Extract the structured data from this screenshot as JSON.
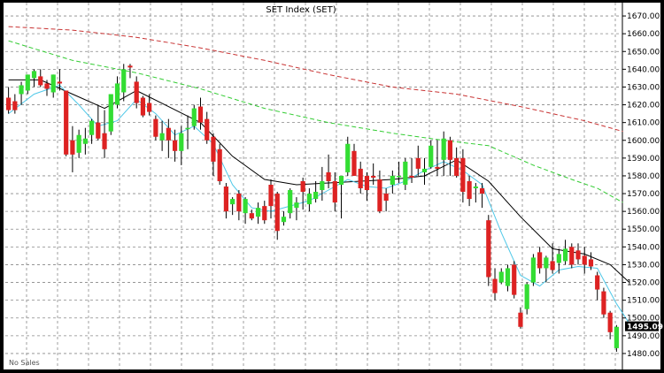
{
  "chart_data": {
    "type": "candlestick",
    "title": "SET Index (SET)",
    "footer_note": "No Sales",
    "ylim": [
      1474,
      1676
    ],
    "y_ticks": [
      1670,
      1660,
      1650,
      1640,
      1630,
      1620,
      1610,
      1600,
      1590,
      1580,
      1570,
      1560,
      1550,
      1540,
      1530,
      1520,
      1510,
      1500,
      1490,
      1480
    ],
    "y_tick_labels": [
      "1670.00",
      "1660.00",
      "1650.00",
      "1640.00",
      "1630.00",
      "1620.00",
      "1610.00",
      "1600.00",
      "1590.00",
      "1580.00",
      "1570.00",
      "1560.00",
      "1550.00",
      "1540.00",
      "1530.00",
      "1520.00",
      "1510.00",
      "1500.00",
      "1490.00",
      "1480.00"
    ],
    "last_value": 1495.09,
    "last_value_label": "1495.09",
    "grid": true,
    "up_color": "#33dd33",
    "down_color": "#dd2222",
    "candles": [
      [
        1624,
        1630,
        1615,
        1617
      ],
      [
        1622,
        1626,
        1615,
        1617
      ],
      [
        1626,
        1633,
        1620,
        1631
      ],
      [
        1628,
        1637,
        1626,
        1637
      ],
      [
        1635,
        1640,
        1630,
        1639
      ],
      [
        1636,
        1640,
        1630,
        1631
      ],
      [
        1632,
        1634,
        1625,
        1629
      ],
      [
        1627,
        1637,
        1624,
        1637
      ],
      [
        1633,
        1640,
        1628,
        1632
      ],
      [
        1628,
        1628,
        1591,
        1592
      ],
      [
        1600,
        1608,
        1582,
        1592
      ],
      [
        1593,
        1606,
        1590,
        1603
      ],
      [
        1598,
        1607,
        1592,
        1601
      ],
      [
        1603,
        1612,
        1598,
        1611
      ],
      [
        1610,
        1620,
        1600,
        1601
      ],
      [
        1604,
        1617,
        1590,
        1595
      ],
      [
        1605,
        1626,
        1603,
        1626
      ],
      [
        1620,
        1636,
        1618,
        1632
      ],
      [
        1627,
        1643,
        1622,
        1640
      ],
      [
        1642,
        1643,
        1635,
        1641
      ],
      [
        1633,
        1636,
        1618,
        1621
      ],
      [
        1624,
        1625,
        1613,
        1614
      ],
      [
        1621,
        1626,
        1614,
        1616
      ],
      [
        1612,
        1614,
        1600,
        1602
      ],
      [
        1600,
        1611,
        1594,
        1604
      ],
      [
        1607,
        1612,
        1590,
        1600
      ],
      [
        1600,
        1606,
        1588,
        1594
      ],
      [
        1594,
        1608,
        1586,
        1604
      ],
      [
        1607,
        1614,
        1595,
        1607
      ],
      [
        1608,
        1620,
        1606,
        1618
      ],
      [
        1619,
        1624,
        1606,
        1610
      ],
      [
        1612,
        1616,
        1598,
        1600
      ],
      [
        1602,
        1604,
        1580,
        1588
      ],
      [
        1595,
        1598,
        1575,
        1577
      ],
      [
        1574,
        1576,
        1556,
        1560
      ],
      [
        1564,
        1568,
        1558,
        1567
      ],
      [
        1570,
        1572,
        1555,
        1560
      ],
      [
        1559,
        1568,
        1553,
        1567
      ],
      [
        1559,
        1561,
        1555,
        1556
      ],
      [
        1557,
        1565,
        1553,
        1562
      ],
      [
        1563,
        1566,
        1553,
        1555
      ],
      [
        1575,
        1578,
        1556,
        1563
      ],
      [
        1570,
        1571,
        1544,
        1549
      ],
      [
        1554,
        1560,
        1552,
        1557
      ],
      [
        1559,
        1573,
        1556,
        1572
      ],
      [
        1562,
        1568,
        1555,
        1565
      ],
      [
        1577,
        1579,
        1561,
        1571
      ],
      [
        1564,
        1573,
        1560,
        1570
      ],
      [
        1567,
        1577,
        1565,
        1571
      ],
      [
        1572,
        1585,
        1566,
        1577
      ],
      [
        1582,
        1592,
        1573,
        1577
      ],
      [
        1577,
        1582,
        1560,
        1565
      ],
      [
        1575,
        1580,
        1556,
        1580
      ],
      [
        1582,
        1602,
        1580,
        1598
      ],
      [
        1594,
        1598,
        1580,
        1580
      ],
      [
        1584,
        1588,
        1570,
        1573
      ],
      [
        1580,
        1582,
        1566,
        1572
      ],
      [
        1580,
        1587,
        1575,
        1579
      ],
      [
        1578,
        1583,
        1559,
        1560
      ],
      [
        1570,
        1573,
        1560,
        1566
      ],
      [
        1575,
        1583,
        1570,
        1580
      ],
      [
        1580,
        1588,
        1576,
        1580
      ],
      [
        1575,
        1590,
        1572,
        1588
      ],
      [
        1580,
        1590,
        1576,
        1579
      ],
      [
        1590,
        1597,
        1580,
        1584
      ],
      [
        1582,
        1590,
        1575,
        1584
      ],
      [
        1585,
        1600,
        1584,
        1597
      ],
      [
        1585,
        1600,
        1580,
        1584
      ],
      [
        1589,
        1605,
        1580,
        1601
      ],
      [
        1600,
        1602,
        1580,
        1589
      ],
      [
        1590,
        1596,
        1579,
        1580
      ],
      [
        1590,
        1595,
        1565,
        1571
      ],
      [
        1577,
        1580,
        1563,
        1567
      ],
      [
        1573,
        1576,
        1565,
        1574
      ],
      [
        1573,
        1576,
        1562,
        1570
      ],
      [
        1555,
        1558,
        1518,
        1523
      ],
      [
        1522,
        1528,
        1510,
        1514
      ],
      [
        1520,
        1528,
        1519,
        1526
      ],
      [
        1518,
        1530,
        1515,
        1528
      ],
      [
        1530,
        1532,
        1511,
        1513
      ],
      [
        1503,
        1506,
        1494,
        1495
      ],
      [
        1505,
        1520,
        1502,
        1519
      ],
      [
        1520,
        1536,
        1518,
        1534
      ],
      [
        1537,
        1540,
        1525,
        1528
      ],
      [
        1528,
        1535,
        1520,
        1534
      ],
      [
        1532,
        1542,
        1525,
        1527
      ],
      [
        1531,
        1539,
        1525,
        1536
      ],
      [
        1532,
        1544,
        1530,
        1539
      ],
      [
        1540,
        1542,
        1528,
        1530
      ],
      [
        1538,
        1542,
        1530,
        1533
      ],
      [
        1535,
        1540,
        1525,
        1530
      ],
      [
        1533,
        1537,
        1527,
        1529
      ],
      [
        1524,
        1526,
        1510,
        1516
      ],
      [
        1515,
        1517,
        1500,
        1502
      ],
      [
        1503,
        1504,
        1488,
        1492
      ],
      [
        1483,
        1496,
        1481,
        1495
      ]
    ],
    "ma_short": [
      [
        0,
        1615
      ],
      [
        4,
        1626
      ],
      [
        8,
        1631
      ],
      [
        11,
        1620
      ],
      [
        14,
        1608
      ],
      [
        17,
        1611
      ],
      [
        20,
        1623
      ],
      [
        23,
        1615
      ],
      [
        26,
        1603
      ],
      [
        29,
        1608
      ],
      [
        32,
        1598
      ],
      [
        35,
        1575
      ],
      [
        38,
        1562
      ],
      [
        41,
        1560
      ],
      [
        44,
        1563
      ],
      [
        47,
        1566
      ],
      [
        50,
        1572
      ],
      [
        53,
        1578
      ],
      [
        56,
        1574
      ],
      [
        59,
        1573
      ],
      [
        62,
        1577
      ],
      [
        65,
        1583
      ],
      [
        68,
        1588
      ],
      [
        71,
        1583
      ],
      [
        74,
        1575
      ],
      [
        77,
        1548
      ],
      [
        80,
        1524
      ],
      [
        83,
        1518
      ],
      [
        86,
        1527
      ],
      [
        89,
        1529
      ],
      [
        92,
        1528
      ],
      [
        95,
        1508
      ],
      [
        97,
        1497
      ]
    ],
    "ma_mid": [
      [
        0,
        1634
      ],
      [
        5,
        1634
      ],
      [
        10,
        1626
      ],
      [
        15,
        1618
      ],
      [
        20,
        1628
      ],
      [
        25,
        1619
      ],
      [
        30,
        1610
      ],
      [
        35,
        1591
      ],
      [
        40,
        1578
      ],
      [
        45,
        1575
      ],
      [
        50,
        1576
      ],
      [
        55,
        1577
      ],
      [
        60,
        1578
      ],
      [
        65,
        1580
      ],
      [
        70,
        1589
      ],
      [
        75,
        1577
      ],
      [
        80,
        1557
      ],
      [
        85,
        1539
      ],
      [
        90,
        1536
      ],
      [
        94,
        1530
      ],
      [
        97,
        1520
      ]
    ],
    "ma_long": [
      [
        0,
        1656
      ],
      [
        10,
        1645
      ],
      [
        20,
        1638
      ],
      [
        30,
        1629
      ],
      [
        40,
        1618
      ],
      [
        50,
        1610
      ],
      [
        60,
        1604
      ],
      [
        68,
        1600
      ],
      [
        75,
        1597
      ],
      [
        82,
        1586
      ],
      [
        88,
        1578
      ],
      [
        92,
        1573
      ],
      [
        96,
        1565
      ]
    ],
    "ma_longest": [
      [
        0,
        1664
      ],
      [
        10,
        1662
      ],
      [
        20,
        1658
      ],
      [
        30,
        1652
      ],
      [
        40,
        1645
      ],
      [
        50,
        1637
      ],
      [
        60,
        1630
      ],
      [
        70,
        1626
      ],
      [
        80,
        1619
      ],
      [
        90,
        1611
      ],
      [
        96,
        1605
      ]
    ]
  }
}
